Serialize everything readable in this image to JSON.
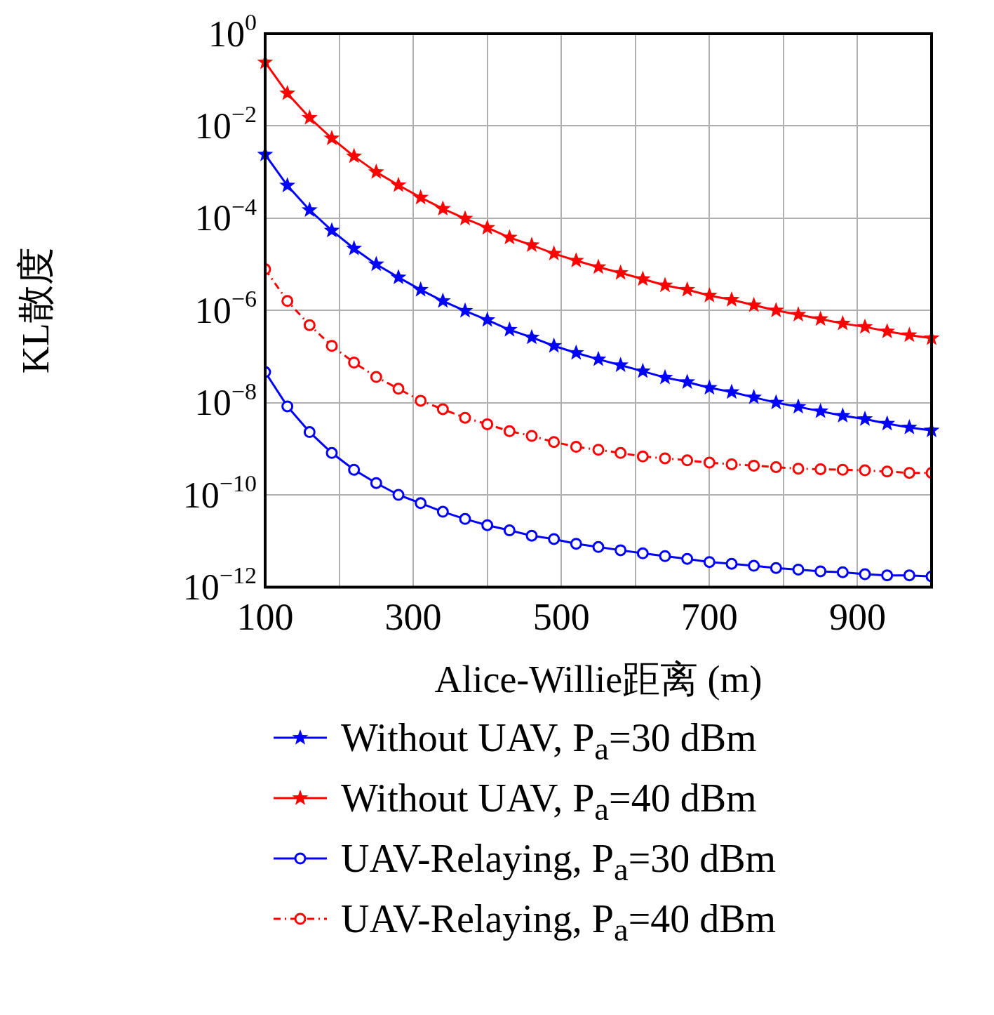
{
  "chart_data": {
    "type": "line",
    "xlabel": "Alice-Willie距离 (m)",
    "ylabel": "KL散度",
    "log": "y",
    "grid": true,
    "legend": "bottom",
    "x": [
      100,
      130,
      160,
      190,
      220,
      250,
      280,
      310,
      340,
      370,
      400,
      430,
      460,
      490,
      520,
      550,
      580,
      610,
      640,
      670,
      700,
      730,
      760,
      790,
      820,
      850,
      880,
      910,
      940,
      970,
      1000
    ],
    "xlim": [
      100,
      1000
    ],
    "xticks": [
      100,
      {
        "value": 200,
        "label": null
      },
      300,
      {
        "value": 400,
        "label": null
      },
      500,
      {
        "value": 600,
        "label": null
      },
      700,
      {
        "value": 800,
        "label": null
      },
      900,
      {
        "value": 1000,
        "label": null
      }
    ],
    "ylim": [
      1e-12,
      1
    ],
    "yticks": [
      {
        "value": 1e-12,
        "label": "10$^{−12}$"
      },
      {
        "value": 1e-10,
        "label": "10$^{−10}$"
      },
      {
        "value": 1e-08,
        "label": "10$^{−8}$"
      },
      {
        "value": 1e-06,
        "label": "10$^{−6}$"
      },
      {
        "value": 0.0001,
        "label": "10$^{−4}$"
      },
      {
        "value": 0.01,
        "label": "10$^{−2}$"
      },
      {
        "value": 1,
        "label": "10$^{0}$"
      }
    ],
    "series": [
      {
        "name": "Without UAV, P$_{a}$=30 dBm",
        "color": "#0000ff",
        "marker": "star",
        "line_style": "solid",
        "values": [
          0.0024,
          0.00051,
          0.00015,
          5.4e-05,
          2.2e-05,
          1e-05,
          5.2e-06,
          2.8e-06,
          1.6e-06,
          9.8e-07,
          6.2e-07,
          3.8e-07,
          2.6e-07,
          1.7e-07,
          1.2e-07,
          8.7e-08,
          6.5e-08,
          4.8e-08,
          3.5e-08,
          2.8e-08,
          2.1e-08,
          1.7e-08,
          1.3e-08,
          1e-08,
          8.1e-09,
          6.5e-09,
          5.2e-09,
          4.4e-09,
          3.5e-09,
          2.9e-09,
          2.5e-09
        ]
      },
      {
        "name": "Without UAV, P$_{a}$=40 dBm",
        "color": "#ff0000",
        "marker": "star",
        "line_style": "solid",
        "values": [
          0.24,
          0.051,
          0.015,
          0.0054,
          0.0022,
          0.001,
          0.00052,
          0.00028,
          0.00016,
          9.8e-05,
          6.2e-05,
          3.8e-05,
          2.6e-05,
          1.7e-05,
          1.2e-05,
          8.7e-06,
          6.5e-06,
          4.8e-06,
          3.5e-06,
          2.8e-06,
          2.1e-06,
          1.7e-06,
          1.3e-06,
          1e-06,
          8.1e-07,
          6.5e-07,
          5.2e-07,
          4.4e-07,
          3.5e-07,
          2.9e-07,
          2.5e-07
        ]
      },
      {
        "name": "UAV-Relaying, P$_{a}$=30 dBm",
        "color": "#0000ff",
        "marker": "circle",
        "line_style": "solid",
        "values": [
          4.6e-08,
          8.3e-09,
          2.3e-09,
          8.1e-10,
          3.5e-10,
          1.8e-10,
          1e-10,
          6.6e-11,
          4.3e-11,
          3e-11,
          2.2e-11,
          1.7e-11,
          1.3e-11,
          1.1e-11,
          8.7e-12,
          7.4e-12,
          6.3e-12,
          5.4e-12,
          4.7e-12,
          4.1e-12,
          3.5e-12,
          3.2e-12,
          2.9e-12,
          2.6e-12,
          2.4e-12,
          2.2e-12,
          2.1e-12,
          1.9e-12,
          1.8e-12,
          1.8e-12,
          1.7e-12
        ]
      },
      {
        "name": "UAV-Relaying, P$_{a}$=40 dBm",
        "color": "#ff0000",
        "marker": "circle",
        "line_style": "dashed",
        "values": [
          7.8e-06,
          1.6e-06,
          4.8e-07,
          1.7e-07,
          7.4e-08,
          3.6e-08,
          2e-08,
          1.1e-08,
          7.2e-09,
          4.7e-09,
          3.4e-09,
          2.4e-09,
          1.9e-09,
          1.4e-09,
          1.1e-09,
          9.5e-10,
          8.1e-10,
          6.8e-10,
          6.2e-10,
          5.6e-10,
          5e-10,
          4.6e-10,
          4.3e-10,
          4e-10,
          3.7e-10,
          3.6e-10,
          3.5e-10,
          3.4e-10,
          3.2e-10,
          3e-10,
          3e-10
        ]
      }
    ]
  }
}
